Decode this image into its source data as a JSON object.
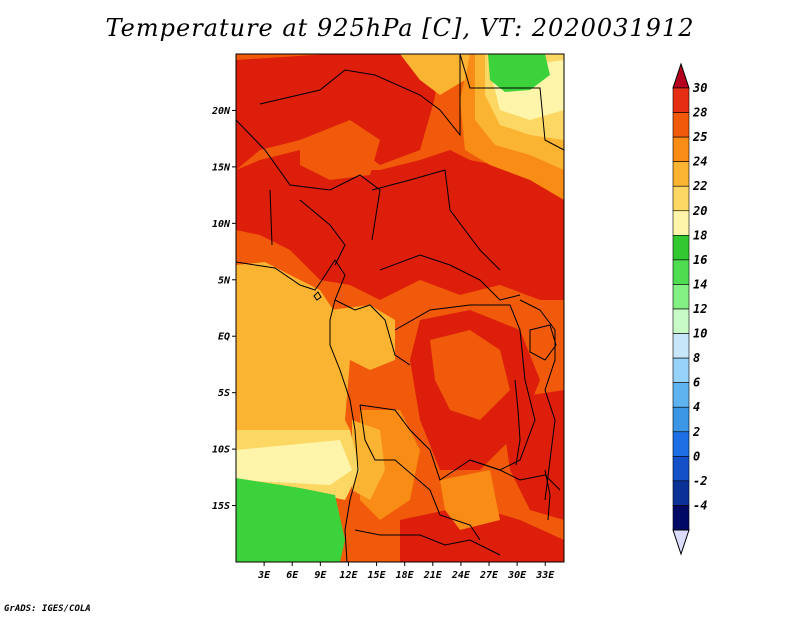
{
  "title": "Temperature at 925hPa [C], VT: 2020031912",
  "credit": "GrADS: IGES/COLA",
  "lat_ticks": [
    {
      "value": 20,
      "label": "20N"
    },
    {
      "value": 15,
      "label": "15N"
    },
    {
      "value": 10,
      "label": "10N"
    },
    {
      "value": 5,
      "label": "5N"
    },
    {
      "value": 0,
      "label": "EQ"
    },
    {
      "value": -5,
      "label": "5S"
    },
    {
      "value": -10,
      "label": "10S"
    },
    {
      "value": -15,
      "label": "15S"
    }
  ],
  "lon_ticks": [
    {
      "value": 3,
      "label": "3E"
    },
    {
      "value": 6,
      "label": "6E"
    },
    {
      "value": 9,
      "label": "9E"
    },
    {
      "value": 12,
      "label": "12E"
    },
    {
      "value": 15,
      "label": "15E"
    },
    {
      "value": 18,
      "label": "18E"
    },
    {
      "value": 21,
      "label": "21E"
    },
    {
      "value": 24,
      "label": "24E"
    },
    {
      "value": 27,
      "label": "27E"
    },
    {
      "value": 30,
      "label": "30E"
    },
    {
      "value": 33,
      "label": "33E"
    }
  ],
  "map_extent": {
    "lon_min": 0,
    "lon_max": 35,
    "lat_min": -20,
    "lat_max": 25
  },
  "colorbar": {
    "top_color": "#b4001e",
    "bottom_color": "#dcdcff",
    "bins": [
      {
        "label": "30",
        "color": "#e62e14"
      },
      {
        "label": "28",
        "color": "#f05a0a"
      },
      {
        "label": "25",
        "color": "#f88c14"
      },
      {
        "label": "24",
        "color": "#fab432"
      },
      {
        "label": "22",
        "color": "#fcd764"
      },
      {
        "label": "20",
        "color": "#fff5aa"
      },
      {
        "label": "18",
        "color": "#32c832"
      },
      {
        "label": "16",
        "color": "#50dc50"
      },
      {
        "label": "14",
        "color": "#82f082"
      },
      {
        "label": "12",
        "color": "#c8fac8"
      },
      {
        "label": "10",
        "color": "#c8e6fa"
      },
      {
        "label": "8",
        "color": "#96d2fa"
      },
      {
        "label": "6",
        "color": "#5fb4f0"
      },
      {
        "label": "4",
        "color": "#3c96e6"
      },
      {
        "label": "2",
        "color": "#1e6ee6"
      },
      {
        "label": "0",
        "color": "#1450c8"
      },
      {
        "label": "-2",
        "color": "#0a3296"
      },
      {
        "label": "-4",
        "color": "#000a64"
      }
    ]
  },
  "colors": {
    "hot": "#dc1e0a",
    "warm": "#f05a0a",
    "orange": "#f88c14",
    "gold": "#fab432",
    "yellow": "#fcd764",
    "pale": "#fff5aa",
    "green": "#3cd23c",
    "lightgreen": "#64dc64"
  }
}
